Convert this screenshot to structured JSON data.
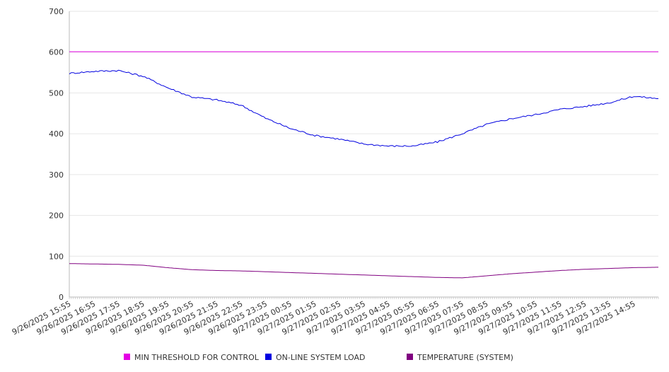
{
  "chart_data": {
    "type": "line",
    "title": "",
    "xlabel": "",
    "ylabel": "",
    "ylim": [
      0,
      700
    ],
    "yticks": [
      0,
      100,
      200,
      300,
      400,
      500,
      600,
      700
    ],
    "grid": "horizontal",
    "legend_position": "bottom",
    "x_tick_labels": [
      "9/26/2025 15:55",
      "9/26/2025 16:55",
      "9/26/2025 17:55",
      "9/26/2025 18:55",
      "9/26/2025 19:55",
      "9/26/2025 20:55",
      "9/26/2025 21:55",
      "9/26/2025 22:55",
      "9/26/2025 23:55",
      "9/27/2025 00:55",
      "9/27/2025 01:55",
      "9/27/2025 02:55",
      "9/27/2025 03:55",
      "9/27/2025 04:55",
      "9/27/2025 05:55",
      "9/27/2025 06:55",
      "9/27/2025 07:55",
      "9/27/2025 08:55",
      "9/27/2025 09:55",
      "9/27/2025 10:55",
      "9/27/2025 11:55",
      "9/27/2025 12:55",
      "9/27/2025 13:55",
      "9/27/2025 14:55"
    ],
    "x_end": "9/27/2025 15:55",
    "series": [
      {
        "name": "MIN THRESHOLD FOR CONTROL",
        "color": "#e400e4",
        "values": [
          601,
          601,
          601,
          601,
          601,
          601,
          601,
          601,
          601,
          601,
          601,
          601,
          601,
          601,
          601,
          601,
          601,
          601,
          601,
          601,
          601,
          601,
          601,
          601,
          601
        ]
      },
      {
        "name": "ON-LINE SYSTEM LOAD",
        "color": "#0000e0",
        "values": [
          548,
          553,
          555,
          541,
          513,
          490,
          483,
          470,
          438,
          413,
          396,
          387,
          375,
          370,
          370,
          380,
          400,
          423,
          437,
          447,
          460,
          467,
          476,
          492,
          486
        ]
      },
      {
        "name": "TEMPERATURE (SYSTEM)",
        "color": "#800080",
        "values": [
          82,
          81,
          80,
          78,
          72,
          67,
          65,
          64,
          62,
          60,
          58,
          56,
          54,
          52,
          50,
          48,
          47,
          52,
          57,
          61,
          65,
          68,
          70,
          72,
          73
        ]
      }
    ]
  }
}
